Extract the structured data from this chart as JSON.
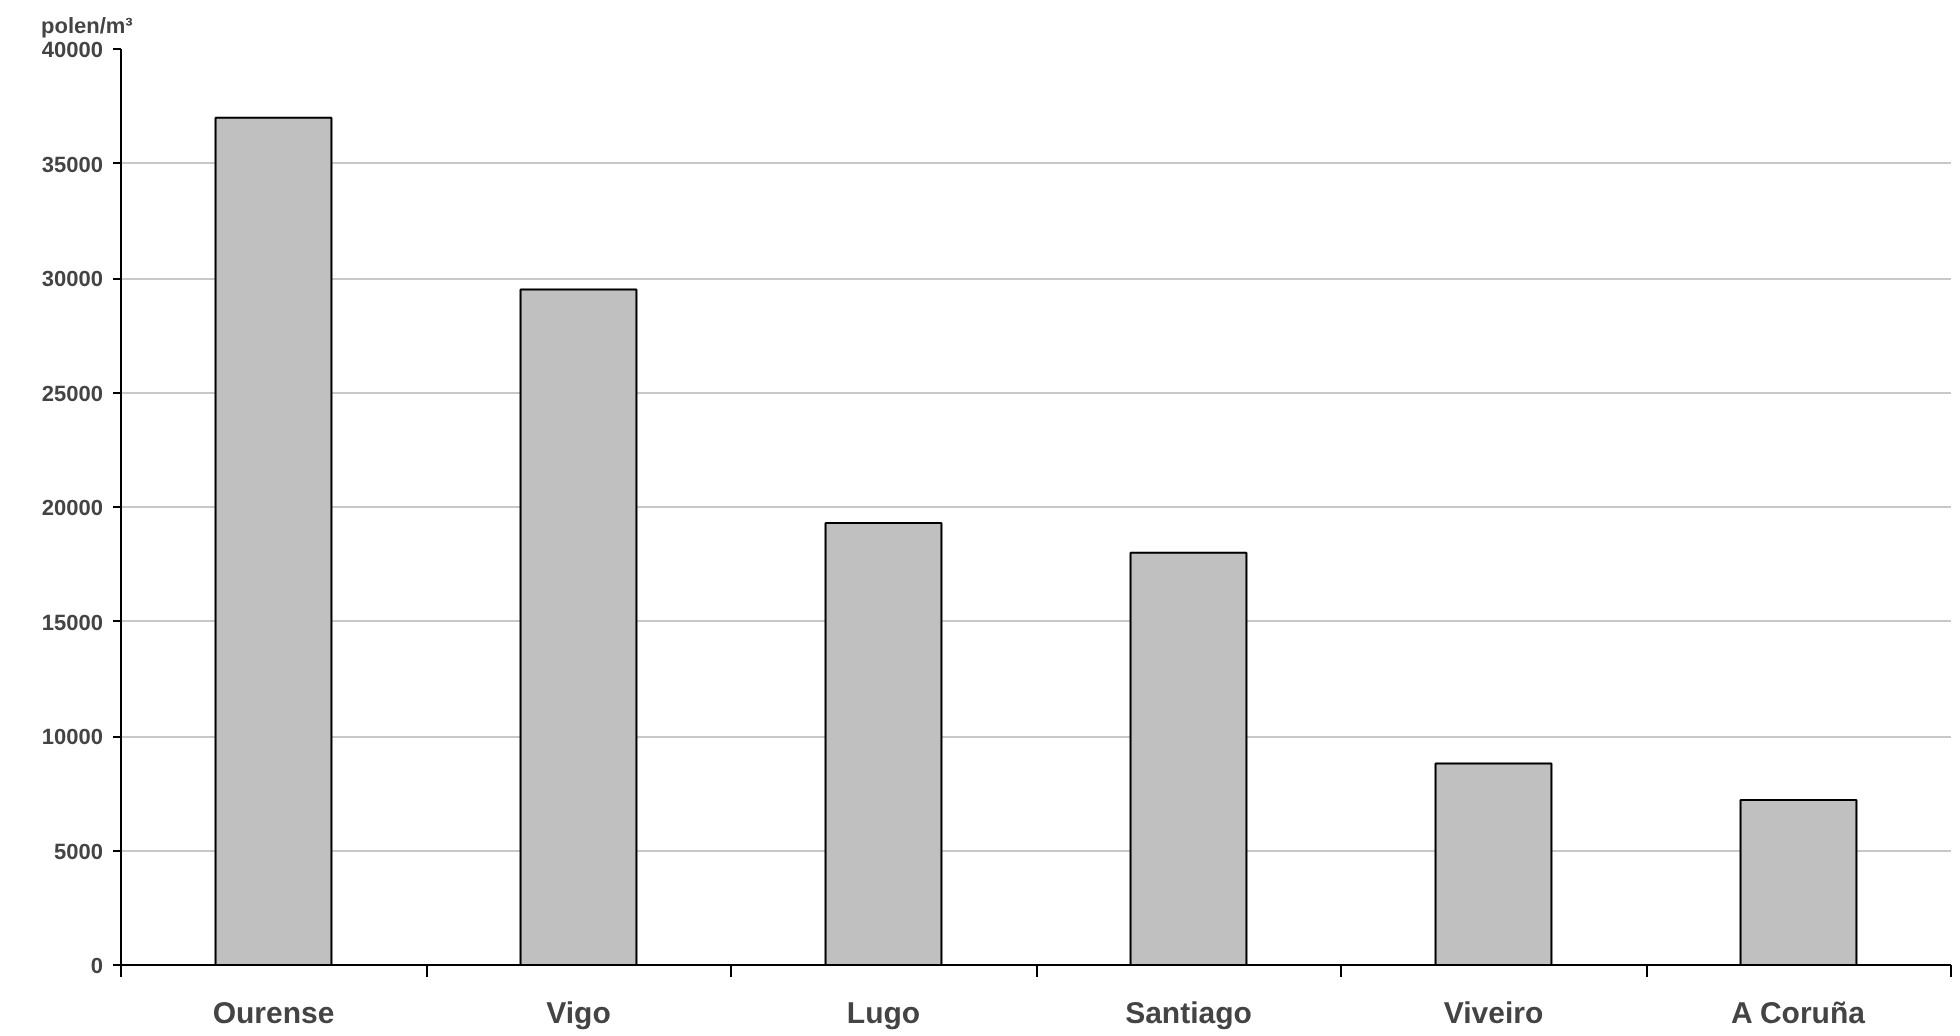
{
  "chart_data": {
    "type": "bar",
    "ylabel": "polen/m³",
    "categories": [
      "Ourense",
      "Vigo",
      "Lugo",
      "Santiago",
      "Viveiro",
      "A Coruña"
    ],
    "values": [
      37000,
      29500,
      19300,
      18000,
      8800,
      7200
    ],
    "color": "#c0c0c0",
    "ylim": [
      0,
      40000
    ],
    "yticks": [
      0,
      5000,
      10000,
      15000,
      20000,
      25000,
      30000,
      35000,
      40000
    ],
    "grid": "y"
  }
}
